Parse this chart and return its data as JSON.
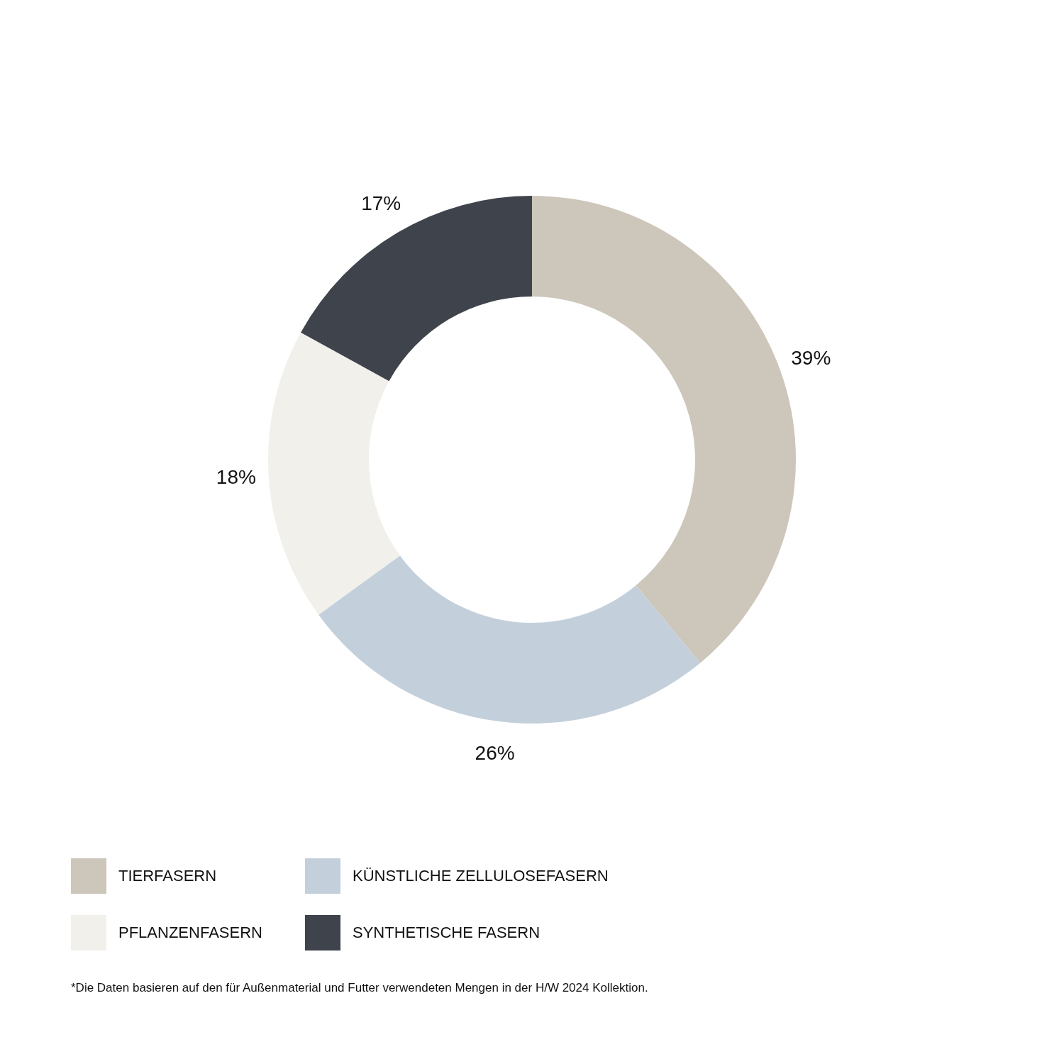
{
  "chart_data": {
    "type": "donut",
    "categories": [
      "TIERFASERN",
      "KÜNSTLICHE ZELLULOSEFASERN",
      "PFLANZENFASERN",
      "SYNTHETISCHE FASERN"
    ],
    "values": [
      39,
      26,
      18,
      17
    ],
    "colors": [
      "#cdc6ba",
      "#c3d0dc",
      "#f2f0eb",
      "#3e434c"
    ],
    "value_labels": [
      "39%",
      "26%",
      "18%",
      "17%"
    ],
    "legend": "bottom left",
    "annotations": [
      "*Die Daten basieren auf den für Außenmaterial und Futter verwendeten Mengen in der H/W 2024 Kollektion."
    ]
  }
}
